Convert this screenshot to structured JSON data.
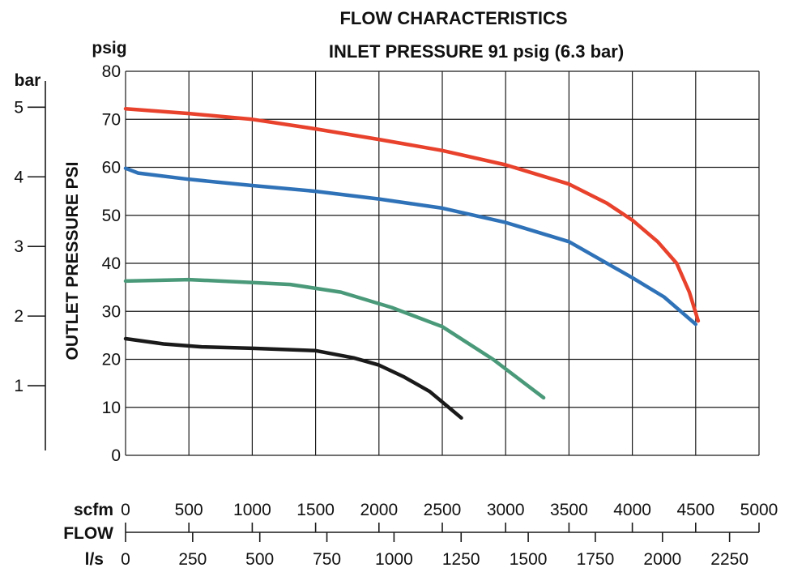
{
  "chart_data": {
    "type": "line",
    "title": "FLOW CHARACTERISTICS",
    "subtitle": "INLET PRESSURE 91 psig (6.3 bar)",
    "ylabel": "OUTLET PRESSURE PSI",
    "xlabel": "FLOW",
    "y_unit_primary": "psig",
    "y_unit_secondary": "bar",
    "x_unit_primary": "scfm",
    "x_unit_secondary": "l/s",
    "ylim": [
      0,
      80
    ],
    "xlim": [
      0,
      5000
    ],
    "grid": true,
    "y_ticks_psig": [
      "0",
      "10",
      "20",
      "30",
      "40",
      "50",
      "60",
      "70",
      "80"
    ],
    "y_ticks_bar": [
      "1",
      "2",
      "3",
      "4",
      "5"
    ],
    "x_ticks_scfm": [
      "0",
      "500",
      "1000",
      "1500",
      "2000",
      "2500",
      "3000",
      "3500",
      "4000",
      "4500",
      "5000"
    ],
    "x_ticks_ls": [
      "0",
      "250",
      "500",
      "750",
      "1000",
      "1250",
      "1500",
      "1750",
      "2000",
      "2250"
    ],
    "series": [
      {
        "color": "#e8412c",
        "x": [
          0,
          500,
          1000,
          1500,
          2000,
          2500,
          3000,
          3500,
          3800,
          4000,
          4200,
          4350,
          4450,
          4520
        ],
        "y": [
          72.2,
          71.2,
          70,
          68,
          65.8,
          63.5,
          60.5,
          56.5,
          52.5,
          49,
          44.5,
          40,
          34,
          28
        ]
      },
      {
        "color": "#2f72b8",
        "x": [
          0,
          100,
          500,
          1000,
          1500,
          2000,
          2500,
          3000,
          3500,
          4000,
          4250,
          4500
        ],
        "y": [
          59.8,
          58.8,
          57.5,
          56.2,
          55,
          53.4,
          51.5,
          48.5,
          44.5,
          37,
          33,
          27.3
        ]
      },
      {
        "color": "#4a9a7a",
        "x": [
          0,
          500,
          1000,
          1300,
          1700,
          2100,
          2500,
          2900,
          3300
        ],
        "y": [
          36.3,
          36.6,
          36,
          35.6,
          34,
          30.8,
          26.8,
          20,
          12
        ]
      },
      {
        "color": "#1a1a1a",
        "x": [
          0,
          300,
          600,
          1000,
          1500,
          1800,
          2000,
          2200,
          2400,
          2650
        ],
        "y": [
          24.3,
          23.2,
          22.6,
          22.3,
          21.8,
          20.3,
          18.8,
          16.3,
          13.3,
          7.8
        ]
      }
    ]
  }
}
